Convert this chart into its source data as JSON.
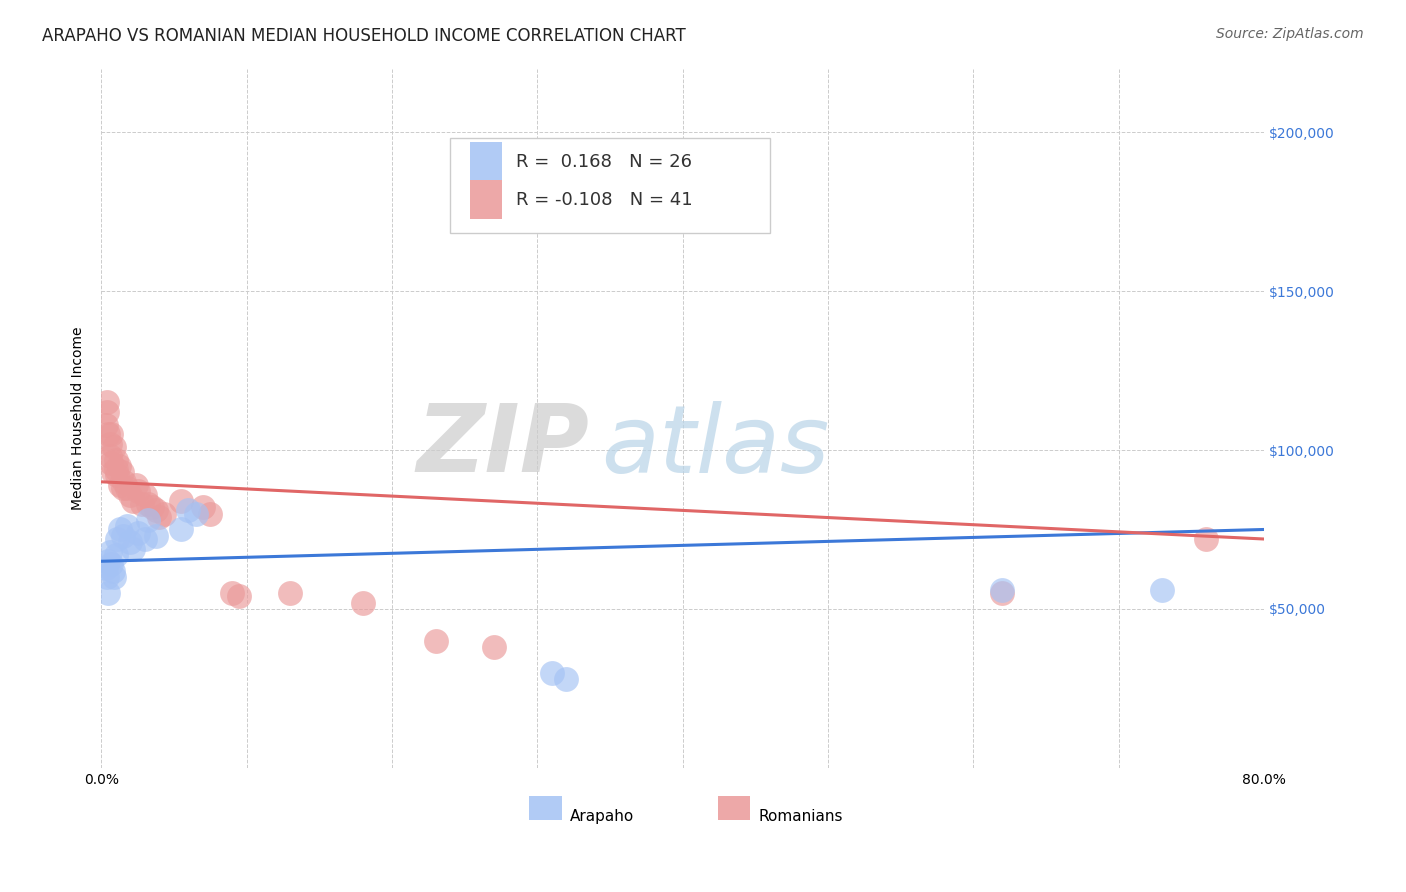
{
  "title": "ARAPAHO VS ROMANIAN MEDIAN HOUSEHOLD INCOME CORRELATION CHART",
  "source": "Source: ZipAtlas.com",
  "ylabel": "Median Household Income",
  "xlim": [
    0,
    0.8
  ],
  "ylim": [
    0,
    220000
  ],
  "yticks": [
    0,
    50000,
    100000,
    150000,
    200000
  ],
  "ytick_labels": [
    "",
    "$50,000",
    "$100,000",
    "$150,000",
    "$200,000"
  ],
  "xticks": [
    0.0,
    0.1,
    0.2,
    0.3,
    0.4,
    0.5,
    0.6,
    0.7,
    0.8
  ],
  "xtick_labels": [
    "0.0%",
    "",
    "",
    "",
    "",
    "",
    "",
    "",
    "80.0%"
  ],
  "legend_r_arapaho": "R =  0.168",
  "legend_n_arapaho": "N = 26",
  "legend_r_romanian": "R = -0.108",
  "legend_n_romanian": "N = 41",
  "arapaho_color": "#a4c2f4",
  "romanian_color": "#ea9999",
  "arapaho_line_color": "#3c78d8",
  "romanian_line_color": "#e06666",
  "watermark_zip": "ZIP",
  "watermark_atlas": "atlas",
  "background_color": "#ffffff",
  "grid_color": "#cccccc",
  "title_fontsize": 12,
  "axis_label_fontsize": 10,
  "tick_fontsize": 10,
  "legend_fontsize": 13,
  "source_fontsize": 10,
  "arapaho_x": [
    0.003,
    0.004,
    0.005,
    0.005,
    0.006,
    0.007,
    0.008,
    0.009,
    0.01,
    0.011,
    0.013,
    0.015,
    0.018,
    0.02,
    0.022,
    0.025,
    0.03,
    0.032,
    0.038,
    0.055,
    0.06,
    0.065,
    0.31,
    0.32,
    0.62,
    0.73
  ],
  "arapaho_y": [
    63000,
    60000,
    55000,
    65000,
    68000,
    64000,
    62000,
    60000,
    67000,
    72000,
    75000,
    73000,
    76000,
    71000,
    69000,
    74000,
    72000,
    78000,
    73000,
    75000,
    81000,
    80000,
    30000,
    28000,
    56000,
    56000
  ],
  "romanian_x": [
    0.003,
    0.004,
    0.004,
    0.005,
    0.006,
    0.006,
    0.007,
    0.007,
    0.008,
    0.009,
    0.01,
    0.01,
    0.011,
    0.012,
    0.013,
    0.014,
    0.015,
    0.016,
    0.018,
    0.02,
    0.022,
    0.024,
    0.025,
    0.028,
    0.03,
    0.032,
    0.035,
    0.038,
    0.04,
    0.043,
    0.055,
    0.07,
    0.075,
    0.09,
    0.095,
    0.13,
    0.18,
    0.23,
    0.27,
    0.62,
    0.76
  ],
  "romanian_y": [
    108000,
    112000,
    115000,
    105000,
    102000,
    98000,
    96000,
    105000,
    93000,
    101000,
    97000,
    94000,
    92000,
    95000,
    89000,
    93000,
    88000,
    90000,
    88000,
    86000,
    84000,
    89000,
    87000,
    83000,
    86000,
    83000,
    82000,
    81000,
    79000,
    80000,
    84000,
    82000,
    80000,
    55000,
    54000,
    55000,
    52000,
    40000,
    38000,
    55000,
    72000
  ],
  "arapaho_trendline": [
    65000,
    75000
  ],
  "romanian_trendline": [
    90000,
    72000
  ]
}
